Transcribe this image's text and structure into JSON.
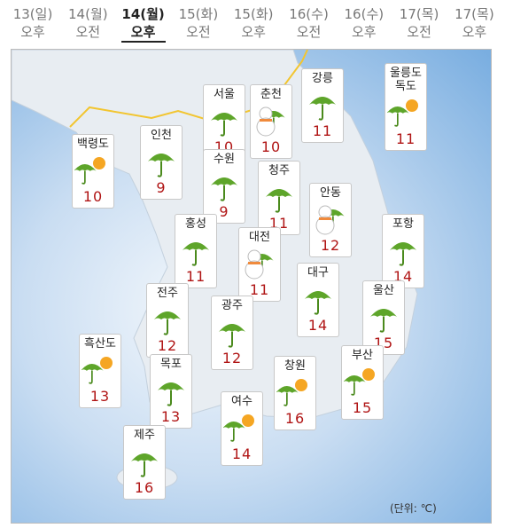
{
  "tabs": [
    {
      "date": "13(일)",
      "time": "오후"
    },
    {
      "date": "14(월)",
      "time": "오전"
    },
    {
      "date": "14(월)",
      "time": "오후"
    },
    {
      "date": "15(화)",
      "time": "오전"
    },
    {
      "date": "15(화)",
      "time": "오후"
    },
    {
      "date": "16(수)",
      "time": "오전"
    },
    {
      "date": "16(수)",
      "time": "오후"
    },
    {
      "date": "17(목)",
      "time": "오전"
    },
    {
      "date": "17(목)",
      "time": "오후"
    }
  ],
  "selected_tab": 2,
  "cities": [
    {
      "name": "백령도",
      "temp": 10,
      "icon": "sun-rain"
    },
    {
      "name": "인천",
      "temp": 9,
      "icon": "rain"
    },
    {
      "name": "서울",
      "temp": 10,
      "icon": "rain"
    },
    {
      "name": "춘천",
      "temp": 10,
      "icon": "snow-rain"
    },
    {
      "name": "강릉",
      "temp": 11,
      "icon": "rain"
    },
    {
      "name": "울릉도\n독도",
      "temp": 11,
      "icon": "sun-rain"
    },
    {
      "name": "수원",
      "temp": 9,
      "icon": "rain"
    },
    {
      "name": "청주",
      "temp": 11,
      "icon": "rain"
    },
    {
      "name": "안동",
      "temp": 12,
      "icon": "snow-rain"
    },
    {
      "name": "포항",
      "temp": 14,
      "icon": "rain"
    },
    {
      "name": "홍성",
      "temp": 11,
      "icon": "rain"
    },
    {
      "name": "대전",
      "temp": 11,
      "icon": "snow-rain"
    },
    {
      "name": "대구",
      "temp": 14,
      "icon": "rain"
    },
    {
      "name": "울산",
      "temp": 15,
      "icon": "rain"
    },
    {
      "name": "전주",
      "temp": 12,
      "icon": "rain"
    },
    {
      "name": "광주",
      "temp": 12,
      "icon": "rain"
    },
    {
      "name": "흑산도",
      "temp": 13,
      "icon": "sun-rain"
    },
    {
      "name": "목포",
      "temp": 13,
      "icon": "rain"
    },
    {
      "name": "부산",
      "temp": 15,
      "icon": "sun-rain"
    },
    {
      "name": "창원",
      "temp": 16,
      "icon": "sun-rain"
    },
    {
      "name": "여수",
      "temp": 14,
      "icon": "sun-rain"
    },
    {
      "name": "제주",
      "temp": 16,
      "icon": "rain"
    }
  ],
  "unit_note": "(단위: ℃)"
}
